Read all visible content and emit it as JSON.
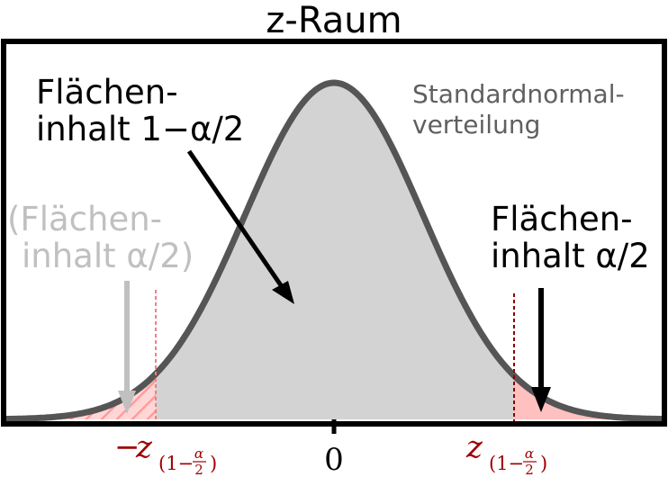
{
  "title": "z-Raum",
  "labels": {
    "center_area_line1": "Flächen-",
    "center_area_line2": "inhalt 1−α/2",
    "distribution_line1": "Standardnormal-",
    "distribution_line2": "verteilung",
    "left_area_line1": "(Flächen-",
    "left_area_line2": "inhalt α/2)",
    "right_area_line1": "Flächen-",
    "right_area_line2": "inhalt α/2"
  },
  "axis": {
    "zero_label": "0",
    "left_quantile_prefix": "−",
    "quantile_symbol": "z",
    "quantile_subscript_open": "(1−",
    "quantile_alpha": "α",
    "quantile_two": "2",
    "quantile_subscript_close": ")"
  },
  "colors": {
    "curve": "#555555",
    "body_fill": "#d3d3d3",
    "tail_fill": "#ffc0c0",
    "tail_hatch": "#ffa0a0",
    "quantile_line": "#8b0000",
    "quantile_line_left": "#f08080",
    "quantile_label": "#a00000",
    "left_label": "#c0c0c0",
    "distribution_label": "#606060"
  }
}
